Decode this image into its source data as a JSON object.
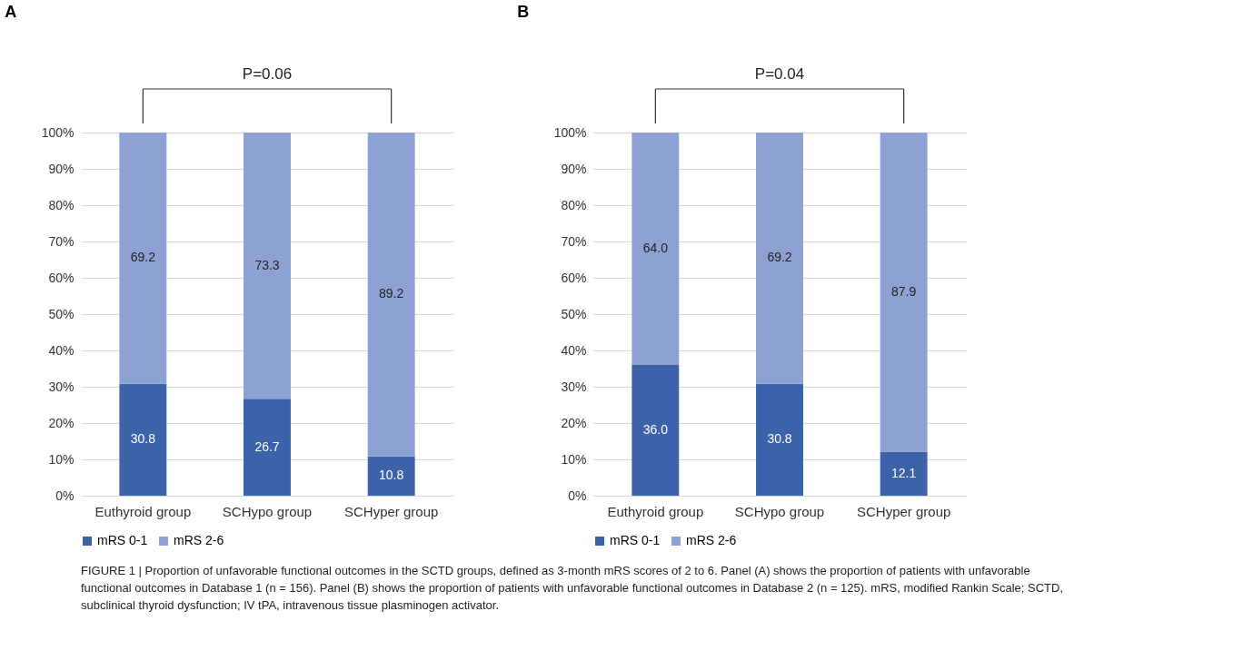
{
  "chart_data": [
    {
      "type": "bar",
      "title": "A",
      "stacked": true,
      "categories": [
        "Euthyroid group",
        "SCHypo group",
        "SCHyper group"
      ],
      "series": [
        {
          "name": "mRS 0-1",
          "color": "#3c63a9",
          "values": [
            30.8,
            26.7,
            10.8
          ],
          "value_labels": [
            "30.8",
            "26.7",
            "10.8"
          ]
        },
        {
          "name": "mRS 2-6",
          "color": "#8da2d2",
          "values": [
            69.2,
            73.3,
            89.2
          ],
          "value_labels": [
            "69.2",
            "73.3",
            "89.2"
          ]
        }
      ],
      "ylim": [
        0,
        100
      ],
      "yticks": [
        {
          "value": 0,
          "label": "0%"
        },
        {
          "value": 10,
          "label": "10%"
        },
        {
          "value": 20,
          "label": "20%"
        },
        {
          "value": 30,
          "label": "30%"
        },
        {
          "value": 40,
          "label": "40%"
        },
        {
          "value": 50,
          "label": "50%"
        },
        {
          "value": 60,
          "label": "60%"
        },
        {
          "value": 70,
          "label": "70%"
        },
        {
          "value": 80,
          "label": "80%"
        },
        {
          "value": 90,
          "label": "90%"
        },
        {
          "value": 100,
          "label": "100%"
        }
      ],
      "grid": "y",
      "legend": "bottom",
      "annotations": [
        "P=0.06"
      ]
    },
    {
      "type": "bar",
      "title": "B",
      "stacked": true,
      "categories": [
        "Euthyroid group",
        "SCHypo group",
        "SCHyper group"
      ],
      "series": [
        {
          "name": "mRS 0-1",
          "color": "#3c63a9",
          "values": [
            36.0,
            30.8,
            12.1
          ],
          "value_labels": [
            "36.0",
            "30.8",
            "12.1"
          ]
        },
        {
          "name": "mRS 2-6",
          "color": "#8da2d2",
          "values": [
            64.0,
            69.2,
            87.9
          ],
          "value_labels": [
            "64.0",
            "69.2",
            "87.9"
          ]
        }
      ],
      "ylim": [
        0,
        100
      ],
      "yticks": [
        {
          "value": 0,
          "label": "0%"
        },
        {
          "value": 10,
          "label": "10%"
        },
        {
          "value": 20,
          "label": "20%"
        },
        {
          "value": 30,
          "label": "30%"
        },
        {
          "value": 40,
          "label": "40%"
        },
        {
          "value": 50,
          "label": "50%"
        },
        {
          "value": 60,
          "label": "60%"
        },
        {
          "value": 70,
          "label": "70%"
        },
        {
          "value": 80,
          "label": "80%"
        },
        {
          "value": 90,
          "label": "90%"
        },
        {
          "value": 100,
          "label": "100%"
        }
      ],
      "grid": "y",
      "legend": "bottom",
      "annotations": [
        "P=0.04",
        "FIGURE 1 | Proportion of unfavorable functional outcomes in the SCTD groups, defined as 3-month mRS scores of 2 to 6. Panel (A) shows the proportion of patients with unfavorable functional outcomes in Database 1 (n = 156). Panel (B) shows the proportion of patients with unfavorable functional outcomes in Database 2 (n = 125). mRS, modified Rankin Scale; SCTD, subclinical thyroid dysfunction; IV tPA, intravenous tissue plasminogen activator."
      ]
    }
  ]
}
